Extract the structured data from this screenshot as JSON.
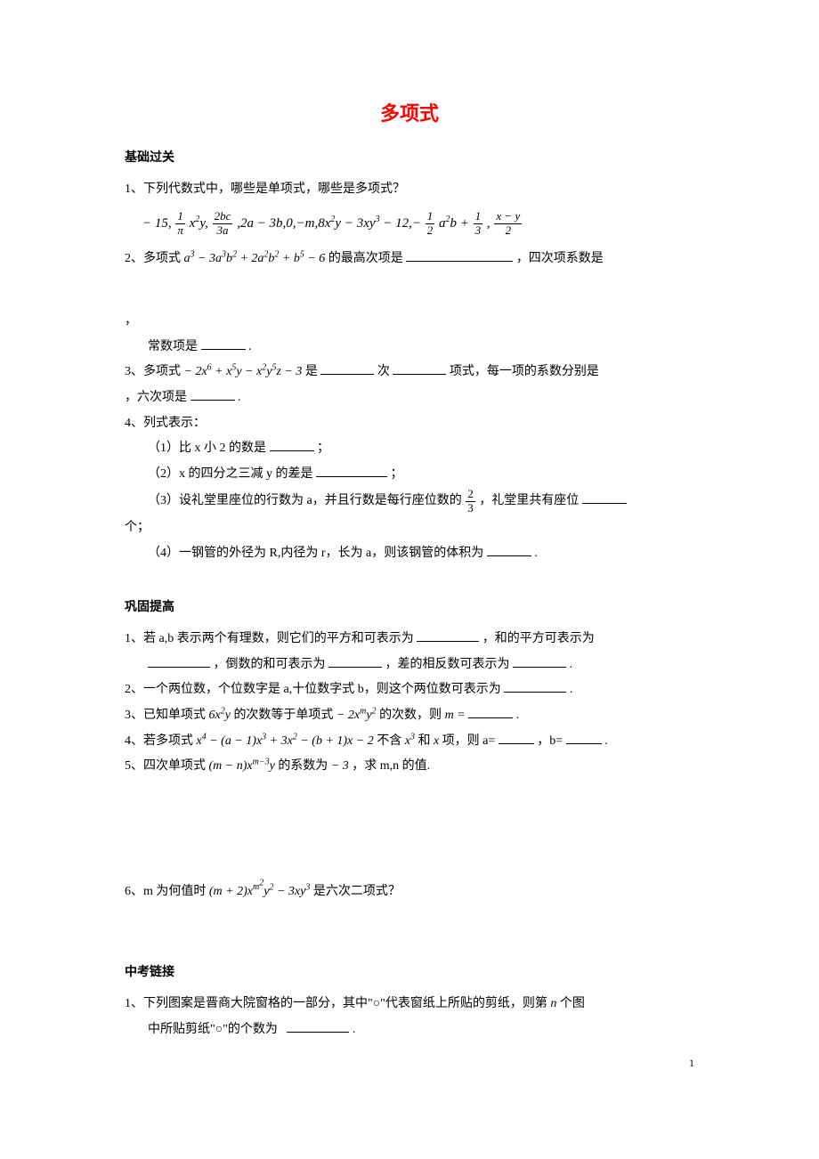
{
  "colors": {
    "title": "#ff0000",
    "text": "#000000",
    "background": "#ffffff"
  },
  "typography": {
    "title_family": "KaiTi",
    "title_size_pt": 22,
    "title_weight": "bold",
    "body_family": "SimSun",
    "body_size_pt": 14,
    "formula_family": "Times New Roman italic for variables"
  },
  "title": "多项式",
  "page_number": "1",
  "sections": {
    "basic": {
      "header": "基础过关",
      "q1_lead": "1、下列代数式中，哪些是单项式，哪些是多项式？",
      "q2_lead": "2、多项式",
      "q2_tail": "的最高次项是",
      "q2_line2_tail": "，四次项系数是",
      "q2_line2_comma": "，",
      "q2_line3": "常数项是",
      "q2_period": ".",
      "q3_lead": "3、多项式",
      "q3_mid1": "是",
      "q3_mid2": "次",
      "q3_mid3": "项式，每一项的系数分别是",
      "q3_line2": "，六次项是",
      "q4_header": "4、列式表示：",
      "q4_1": "（1）比 x 小 2 的数是",
      "q4_1_tail": "；",
      "q4_2": "（2）x 的四分之三减 y 的差是",
      "q4_2_tail": "；",
      "q4_3_pre": "（3）设礼堂里座位的行数为 a，并且行数是每行座位数的",
      "q4_3_post": "，礼堂里共有座位",
      "q4_3_line2": "个；",
      "q4_4": "（4）一钢管的外径为 R,内径为 r，长为 a，则该钢管的体积为",
      "q4_4_tail": "."
    },
    "improve": {
      "header": "巩固提高",
      "q1_lead": "1、若 a,b 表示两个有理数，则它们的平方和可表示为",
      "q1_tail": "，和的平方可表示为",
      "q1_line2_a": "，倒数的和可表示为",
      "q1_line2_b": "，差的相反数可表示为",
      "q1_period": ".",
      "q2": "2、一个两位数，个位数字是 a,十位数字式 b，则这个两位数可表示为",
      "q2_period": ".",
      "q3_pre": "3、已知单项式",
      "q3_mid": "的次数等于单项式",
      "q3_post": "的次数，则",
      "q3_period": ".",
      "q4_pre": "4、若多项式",
      "q4_mid": "不含",
      "q4_mid2": "和",
      "q4_mid3": "项，则 a=",
      "q4_mid4": "，b=",
      "q4_period": ".",
      "q5_pre": "5、四次单项式",
      "q5_mid": "的系数为",
      "q5_post": "，求 m,n 的值.",
      "q6_pre": "6、m 为何值时",
      "q6_post": "是六次二项式？"
    },
    "link": {
      "header": "中考链接",
      "q1_line1_pre": "1、下列图案是晋商大院窗格的一部分，其中\"○\"代表窗纸上所贴的剪纸，则第",
      "q1_line1_post": "个图",
      "q1_line2": "中所贴剪纸\"○\"的个数为",
      "q1_period": "."
    }
  },
  "math": {
    "basic_q1_formula_parts": {
      "part1": "− 15,",
      "f1_num": "1",
      "f1_den": "π",
      "part2": "x",
      "sup2": "2",
      "part2b": "y,",
      "f2_num": "2bc",
      "f2_den": "3a",
      "part3": ",2a − 3b,0,−m,8x",
      "sup3a": "2",
      "part3b": "y − 3xy",
      "sup3b": "3",
      "part3c": " − 12,−",
      "f3_num": "1",
      "f3_den": "2",
      "part4": "a",
      "sup4": "2",
      "part4b": "b +",
      "f4_num": "1",
      "f4_den": "3",
      "part5": ",",
      "f5_num": "x − y",
      "f5_den": "2"
    },
    "basic_q2_poly": {
      "a": "a",
      "s3": "3",
      "minus": " − 3a",
      "b2": "b",
      "s2": "2",
      "plus": " + 2a",
      "plusb": " + b",
      "s5": "5",
      "tail": " − 6"
    },
    "basic_q3_poly": {
      "lead": "− 2x",
      "s6": "6",
      "p2": " + x",
      "s5": "5",
      "p3": "y − x",
      "s2": "2",
      "p4": "y",
      "p5": "z − 3"
    },
    "q4_3_frac": {
      "num": "2",
      "den": "3"
    },
    "imp_q3_a": {
      "lead": "6x",
      "s2": "2",
      "tail": "y"
    },
    "imp_q3_b": {
      "lead": "− 2x",
      "sm": "m",
      "mid": "y",
      "s2": "2"
    },
    "imp_q3_m": "m = ",
    "imp_q4_poly": {
      "p1": "x",
      "s4": "4",
      "p2": " − (a − 1)x",
      "s3": "3",
      "p3": " + 3x",
      "s2": "2",
      "p4": " − (b + 1)x − 2"
    },
    "imp_q4_x3": {
      "x": "x",
      "s": "3"
    },
    "imp_q4_x": "x ",
    "imp_q5_mono": {
      "p1": "(m − n)x",
      "sup": "m−3",
      "p2": "y"
    },
    "imp_q5_neg3": "− 3",
    "imp_q6_expr": {
      "p1": "(m + 2)x",
      "sup1": "m",
      "supsup": "2",
      "mid": "y",
      "sup2": "2",
      "p2": " − 3xy",
      "sup3": "3"
    },
    "link_n": "n "
  }
}
